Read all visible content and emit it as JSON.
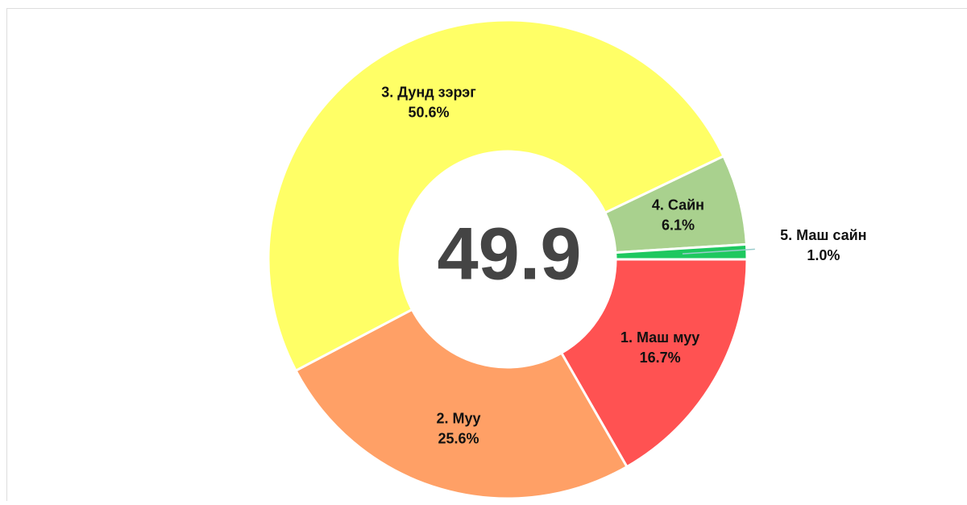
{
  "chart_data": {
    "type": "donut",
    "center_value": 49.9,
    "categories": [
      "1. Маш муу",
      "2. Муу",
      "3. Дунд зэрэг",
      "4. Сайн",
      "5. Маш сайн"
    ],
    "values": [
      16.7,
      25.6,
      50.6,
      6.1,
      1.0
    ],
    "value_labels": [
      "16.7%",
      "25.6%",
      "50.6%",
      "6.1%",
      "1.0%"
    ],
    "colors": [
      "#ff5252",
      "#ffa066",
      "#ffff66",
      "#a9d18e",
      "#1ec85f"
    ]
  }
}
